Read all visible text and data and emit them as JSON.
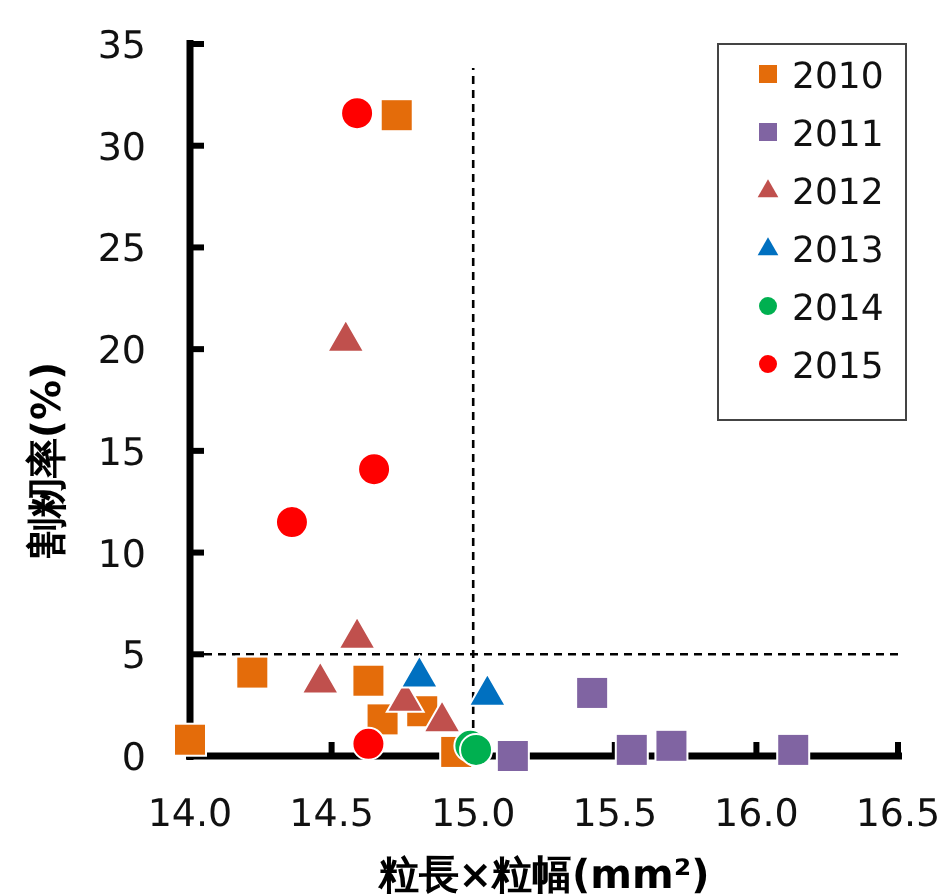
{
  "chart_data": {
    "type": "scatter",
    "xlabel": "粒長×粒幅(mm²)",
    "ylabel": "割籾率(%)",
    "xlim": [
      14.0,
      16.5
    ],
    "xticks": [
      {
        "value": 14.0,
        "label": "14.0"
      },
      {
        "value": 14.5,
        "label": "14.5"
      },
      {
        "value": 15.0,
        "label": "15.0"
      },
      {
        "value": 15.5,
        "label": "15.5"
      },
      {
        "value": 16.0,
        "label": "16.0"
      },
      {
        "value": 16.5,
        "label": "16.5"
      }
    ],
    "ylim": [
      0,
      35
    ],
    "yticks": [
      0,
      5,
      10,
      15,
      20,
      25,
      30,
      35
    ],
    "grid": false,
    "legend": "top right",
    "ref_lines": [
      {
        "axis": "x",
        "value": 15.0,
        "line_style": "dashed"
      },
      {
        "axis": "y",
        "value": 5,
        "line_style": "dashed"
      }
    ],
    "series": [
      {
        "name": "2010",
        "color": "#e46c0a",
        "marker": "square",
        "x": [
          14.0,
          14.22,
          14.73,
          14.63,
          14.68,
          14.82,
          14.94
        ],
        "values": [
          0.8,
          4.1,
          31.5,
          3.7,
          1.8,
          2.2,
          0.2
        ]
      },
      {
        "name": "2011",
        "color": "#8064a2",
        "marker": "square",
        "x": [
          15.42,
          15.14,
          15.56,
          15.7,
          16.13
        ],
        "values": [
          3.1,
          0.0,
          0.3,
          0.5,
          0.3
        ]
      },
      {
        "name": "2012",
        "color": "#c0504d",
        "marker": "triangle",
        "x": [
          14.55,
          14.59,
          14.46,
          14.76,
          14.89
        ],
        "values": [
          20.5,
          5.9,
          3.7,
          2.8,
          1.8
        ]
      },
      {
        "name": "2013",
        "color": "#0070c0",
        "marker": "triangle",
        "x": [
          14.81,
          15.05
        ],
        "values": [
          4.0,
          3.1
        ]
      },
      {
        "name": "2014",
        "color": "#00b050",
        "marker": "circle",
        "x": [
          14.99,
          15.01
        ],
        "values": [
          0.5,
          0.3
        ]
      },
      {
        "name": "2015",
        "color": "#ff0000",
        "marker": "circle",
        "x": [
          14.59,
          14.65,
          14.36,
          14.63
        ],
        "values": [
          31.6,
          14.1,
          11.5,
          0.6
        ]
      }
    ]
  }
}
